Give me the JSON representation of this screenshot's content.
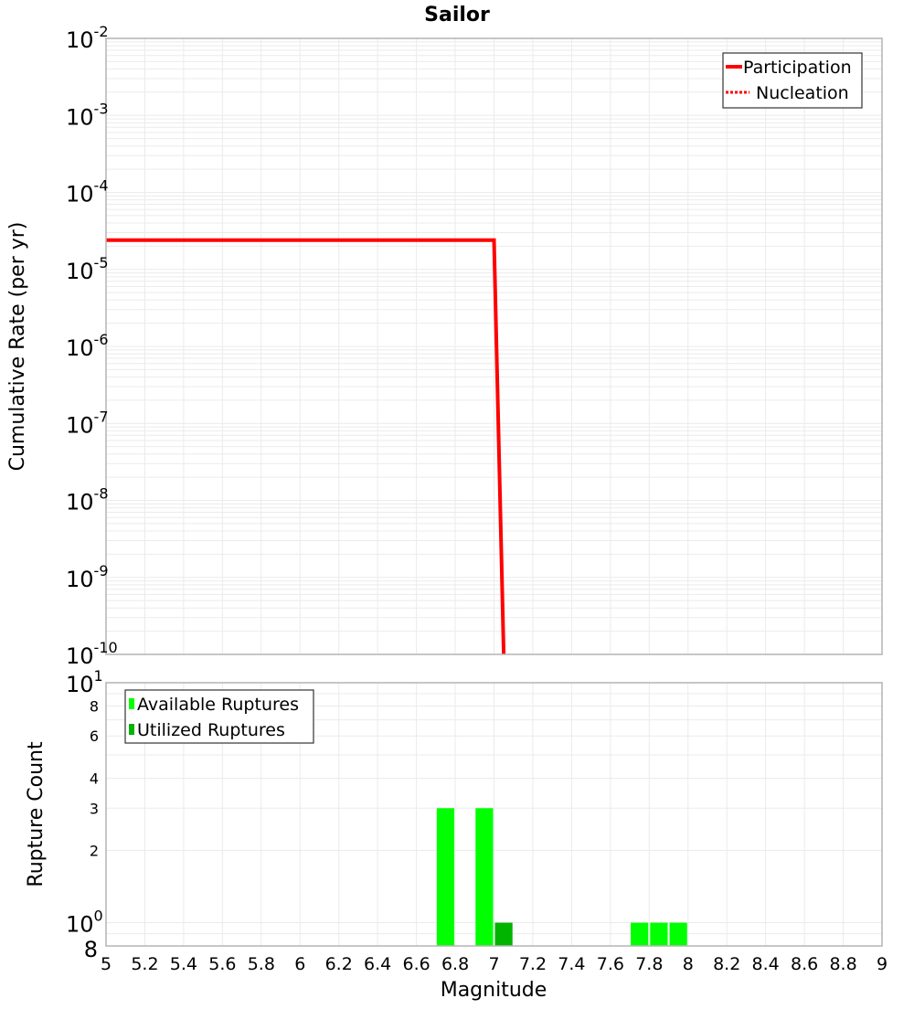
{
  "title": "Sailor",
  "chart_data": [
    {
      "type": "line",
      "title": "Sailor",
      "xlabel": "",
      "ylabel": "Cumulative Rate (per yr)",
      "yscale": "log",
      "ylim": [
        1e-10,
        0.01
      ],
      "xlim": [
        5,
        9
      ],
      "grid": true,
      "legend_position": "top-right",
      "y_tick_labels": [
        "10^-2",
        "10^-3",
        "10^-4",
        "10^-5",
        "10^-6",
        "10^-7",
        "10^-8",
        "10^-9",
        "10^-10"
      ],
      "series": [
        {
          "name": "Participation",
          "style": "solid",
          "color": "#ff0000",
          "x": [
            5.0,
            7.0,
            7.05
          ],
          "y": [
            2.4e-05,
            2.4e-05,
            1e-10
          ]
        },
        {
          "name": "Nucleation",
          "style": "dotted",
          "color": "#ff0000",
          "x": [
            5.0,
            7.0,
            7.05
          ],
          "y": [
            2.4e-05,
            2.4e-05,
            1e-10
          ]
        }
      ]
    },
    {
      "type": "bar",
      "title": "",
      "xlabel": "Magnitude",
      "ylabel": "Rupture Count",
      "yscale": "log",
      "ylim": [
        0.8,
        10
      ],
      "xlim": [
        5,
        9
      ],
      "grid": true,
      "legend_position": "top-left",
      "bin_width": 0.1,
      "x_tick_labels": [
        "5",
        "5.2",
        "5.4",
        "5.6",
        "5.8",
        "6",
        "6.2",
        "6.4",
        "6.6",
        "6.8",
        "7",
        "7.2",
        "7.4",
        "7.6",
        "7.8",
        "8",
        "8.2",
        "8.4",
        "8.6",
        "8.8",
        "9"
      ],
      "y_tick_labels": [
        {
          "v": 10,
          "label": "10",
          "sup": "1",
          "major": true
        },
        {
          "v": 8,
          "label": "8",
          "major": false
        },
        {
          "v": 6,
          "label": "6",
          "major": false
        },
        {
          "v": 4,
          "label": "4",
          "major": false
        },
        {
          "v": 3,
          "label": "3",
          "major": false
        },
        {
          "v": 2,
          "label": "2",
          "major": false
        },
        {
          "v": 1,
          "label": "10",
          "sup": "0",
          "major": true
        },
        {
          "v": 0.8,
          "label": "8",
          "major": true
        }
      ],
      "series": [
        {
          "name": "Available Ruptures",
          "color": "#00ff00",
          "x": [
            6.75,
            6.95,
            7.75,
            7.85,
            7.95
          ],
          "values": [
            3,
            3,
            1,
            1,
            1
          ]
        },
        {
          "name": "Utilized Ruptures",
          "color": "#00b400",
          "x": [
            7.05
          ],
          "values": [
            1
          ]
        }
      ]
    }
  ]
}
